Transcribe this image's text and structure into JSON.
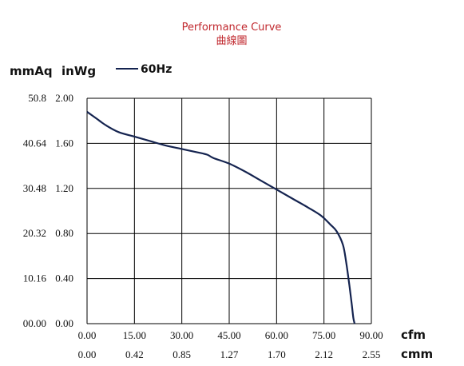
{
  "chart_data": {
    "type": "line",
    "title": "Performance Curve",
    "subtitle": "曲線圖",
    "title_color": "#c0272d",
    "curve_color": "#14234f",
    "left_unit_mm": "mmAq",
    "left_unit_in": "inWg",
    "x_unit_cfm": "cfm",
    "x_unit_cmm": "cmm",
    "grid": true,
    "legend_position": "top-left",
    "x_ticks_cfm": [
      "0.00",
      "15.00",
      "30.00",
      "45.00",
      "60.00",
      "75.00",
      "90.00"
    ],
    "x_ticks_cmm": [
      "0.00",
      "0.42",
      "0.85",
      "1.27",
      "1.70",
      "2.12",
      "2.55"
    ],
    "y_ticks_inwg": [
      "0.00",
      "0.40",
      "0.80",
      "1.20",
      "1.60",
      "2.00"
    ],
    "y_ticks_mmaq": [
      "00.00",
      "10.16",
      "20.32",
      "30.48",
      "40.64",
      "50.8"
    ],
    "xlim": [
      0,
      90
    ],
    "ylim": [
      0,
      2.0
    ],
    "series": [
      {
        "name": "60Hz",
        "x": [
          0,
          3,
          6,
          10,
          15,
          20,
          25,
          30,
          35,
          38,
          40,
          45,
          50,
          55,
          60,
          65,
          70,
          74,
          77,
          79,
          81,
          82,
          83,
          83.8,
          84.3,
          84.7
        ],
        "y": [
          1.88,
          1.82,
          1.76,
          1.7,
          1.66,
          1.62,
          1.58,
          1.55,
          1.52,
          1.5,
          1.47,
          1.42,
          1.35,
          1.27,
          1.19,
          1.11,
          1.03,
          0.96,
          0.88,
          0.82,
          0.7,
          0.55,
          0.35,
          0.17,
          0.05,
          0.0
        ]
      }
    ]
  }
}
